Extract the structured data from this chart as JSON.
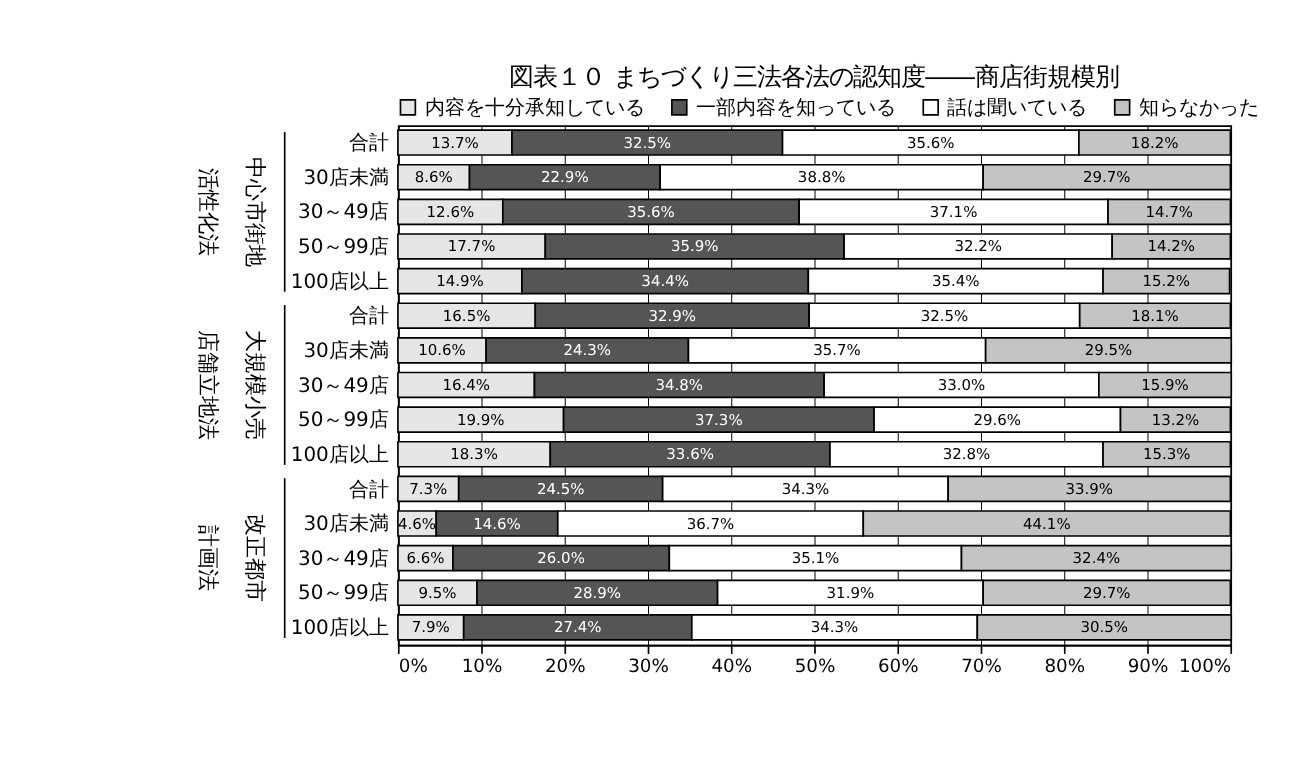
{
  "chart_data": {
    "type": "bar",
    "orientation": "horizontal",
    "stacked": true,
    "title": "図表１０ まちづくり三法各法の認知度――商店街規模別",
    "categories": [
      "合計",
      "30店未満",
      "30～49店",
      "50～99店",
      "100店以上",
      "合計",
      "30店未満",
      "30～49店",
      "50～99店",
      "100店以上",
      "合計",
      "30店未満",
      "30～49店",
      "50～99店",
      "100店以上"
    ],
    "annotations": [
      "中心市街地",
      "活性化法",
      "大規模小売",
      "店舗立地法",
      "改正都市",
      "計画法"
    ],
    "series": [
      {
        "name": "内容を十分承知している",
        "color": "#e6e6e6",
        "values": [
          13.7,
          8.6,
          12.6,
          17.7,
          14.9,
          16.5,
          10.6,
          16.4,
          19.9,
          18.3,
          7.3,
          4.6,
          6.6,
          9.5,
          7.9
        ],
        "value_labels": [
          "13.7%",
          "8.6%",
          "12.6%",
          "17.7%",
          "14.9%",
          "16.5%",
          "10.6%",
          "16.4%",
          "19.9%",
          "18.3%",
          "7.3%",
          "4.6%",
          "6.6%",
          "9.5%",
          "7.9%"
        ]
      },
      {
        "name": "一部内容を知っている",
        "color": "#555555",
        "values": [
          32.5,
          22.9,
          35.6,
          35.9,
          34.4,
          32.9,
          24.3,
          34.8,
          37.3,
          33.6,
          24.5,
          14.6,
          26.0,
          28.9,
          27.4
        ],
        "value_labels": [
          "32.5%",
          "22.9%",
          "35.6%",
          "35.9%",
          "34.4%",
          "32.9%",
          "24.3%",
          "34.8%",
          "37.3%",
          "33.6%",
          "24.5%",
          "14.6%",
          "26.0%",
          "28.9%",
          "27.4%"
        ]
      },
      {
        "name": "話は聞いている",
        "color": "#ffffff",
        "values": [
          35.6,
          38.8,
          37.1,
          32.2,
          35.4,
          32.5,
          35.7,
          33.0,
          29.6,
          32.8,
          34.3,
          36.7,
          35.1,
          31.9,
          34.3
        ],
        "value_labels": [
          "35.6%",
          "38.8%",
          "37.1%",
          "32.2%",
          "35.4%",
          "32.5%",
          "35.7%",
          "33.0%",
          "29.6%",
          "32.8%",
          "34.3%",
          "36.7%",
          "35.1%",
          "31.9%",
          "34.3%"
        ]
      },
      {
        "name": "知らなかった",
        "color": "#c4c4c4",
        "values": [
          18.2,
          29.7,
          14.7,
          14.2,
          15.2,
          18.1,
          29.5,
          15.9,
          13.2,
          15.3,
          33.9,
          44.1,
          32.4,
          29.7,
          30.5
        ],
        "value_labels": [
          "18.2%",
          "29.7%",
          "14.7%",
          "14.2%",
          "15.2%",
          "18.1%",
          "29.5%",
          "15.9%",
          "13.2%",
          "15.3%",
          "33.9%",
          "44.1%",
          "32.4%",
          "29.7%",
          "30.5%"
        ]
      }
    ],
    "xlim": [
      0,
      100
    ],
    "xticks": [
      {
        "value": 0,
        "label": "0%"
      },
      {
        "value": 10,
        "label": "10%"
      },
      {
        "value": 20,
        "label": "20%"
      },
      {
        "value": 30,
        "label": "30%"
      },
      {
        "value": 40,
        "label": "40%"
      },
      {
        "value": 50,
        "label": "50%"
      },
      {
        "value": 60,
        "label": "60%"
      },
      {
        "value": 70,
        "label": "70%"
      },
      {
        "value": 80,
        "label": "80%"
      },
      {
        "value": 90,
        "label": "90%"
      },
      {
        "value": 100,
        "label": "100%"
      }
    ],
    "grid": "x",
    "legend": "top"
  }
}
